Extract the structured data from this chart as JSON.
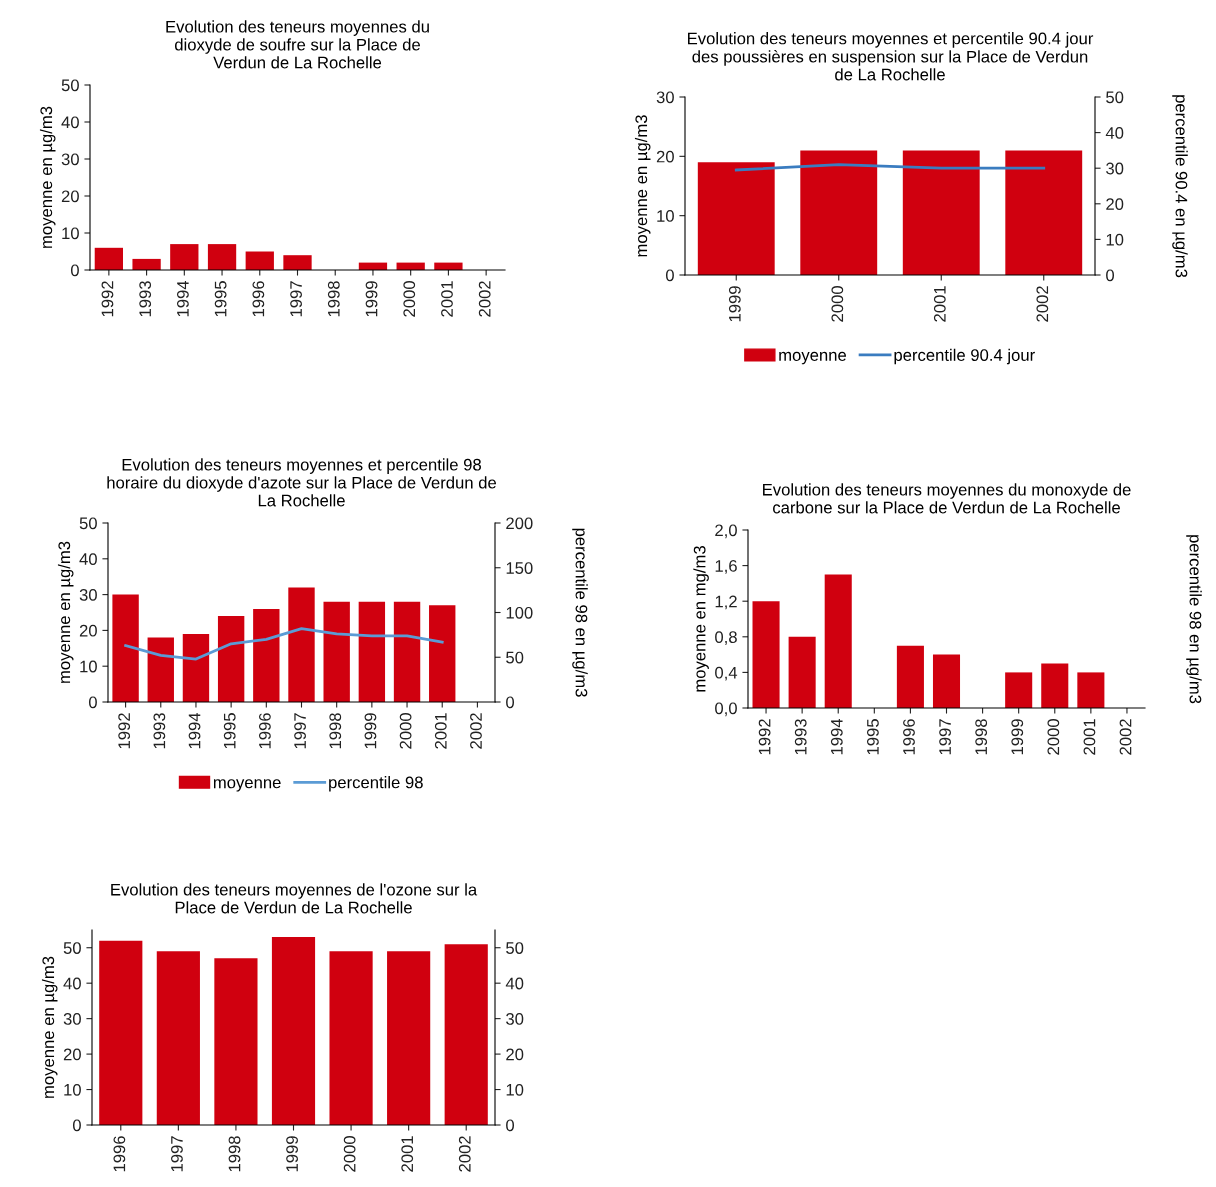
{
  "chart_data": [
    {
      "type": "bar",
      "title": "Evolution des teneurs moyennes du\ndioxyde de soufre sur la Place de\nVerdun de La Rochelle",
      "ylabel": "moyenne en µg/m3",
      "categories": [
        "1992",
        "1993",
        "1994",
        "1995",
        "1996",
        "1997",
        "1998",
        "1999",
        "2000",
        "2001",
        "2002"
      ],
      "series": [
        {
          "color": "#d0000f",
          "values": [
            6,
            3,
            7,
            7,
            5,
            4,
            null,
            2,
            2,
            2,
            null
          ]
        }
      ],
      "ylim": [
        0,
        50
      ],
      "yticks": [
        0,
        10,
        20,
        30,
        40,
        50
      ],
      "grid": false,
      "legend": false
    },
    {
      "type": "bar",
      "title": "Evolution des teneurs moyennes et percentile 90.4 jour\ndes poussières en suspension sur la Place de Verdun\nde La Rochelle",
      "ylabel": "moyenne en µg/m3",
      "y2label": "percentile 90.4 en µg/m3",
      "categories": [
        "1999",
        "2000",
        "2001",
        "2002"
      ],
      "series": [
        {
          "name": "moyenne",
          "color": "#d0000f",
          "values": [
            19,
            21,
            21,
            21
          ]
        },
        {
          "name": "percentile 90.4 jour",
          "type": "line",
          "axis": "y2",
          "color": "#3a7cc0",
          "values": [
            29.5,
            31,
            30,
            30
          ]
        }
      ],
      "ylim": [
        0,
        30
      ],
      "yticks": [
        0,
        10,
        20,
        30
      ],
      "y2lim": [
        0,
        50
      ],
      "y2ticks": [
        0,
        10,
        20,
        30,
        40,
        50
      ],
      "grid": false,
      "legend": "bottom",
      "marker": "none",
      "line_style": "solid"
    },
    {
      "type": "bar",
      "title": "Evolution des teneurs moyennes et percentile 98\nhoraire du dioxyde d'azote sur la Place de Verdun de\nLa Rochelle",
      "ylabel": "moyenne en µg/m3",
      "y2label": "percentile 98 en µg/m3",
      "categories": [
        "1992",
        "1993",
        "1994",
        "1995",
        "1996",
        "1997",
        "1998",
        "1999",
        "2000",
        "2001",
        "2002"
      ],
      "series": [
        {
          "name": "moyenne",
          "color": "#d0000f",
          "values": [
            30,
            18,
            19,
            24,
            26,
            32,
            28,
            28,
            28,
            27,
            null
          ]
        },
        {
          "name": "percentile 98",
          "type": "line",
          "axis": "y2",
          "color": "#5b9bd5",
          "values": [
            63,
            52,
            48,
            65,
            70,
            82,
            76,
            74,
            74,
            67,
            null
          ]
        }
      ],
      "ylim": [
        0,
        50
      ],
      "yticks": [
        0,
        10,
        20,
        30,
        40,
        50
      ],
      "y2lim": [
        0,
        200
      ],
      "y2ticks": [
        0,
        50,
        100,
        150,
        200
      ],
      "grid": false,
      "legend": "bottom",
      "marker": "none",
      "line_style": "solid"
    },
    {
      "type": "bar",
      "title": "Evolution des teneurs moyennes du monoxyde de\ncarbone sur la Place de Verdun de La Rochelle",
      "ylabel": "moyenne en mg/m3",
      "y2label": "percentile 98 en µg/m3",
      "categories": [
        "1992",
        "1993",
        "1994",
        "1995",
        "1996",
        "1997",
        "1998",
        "1999",
        "2000",
        "2001",
        "2002"
      ],
      "series": [
        {
          "color": "#d0000f",
          "values": [
            1.2,
            0.8,
            1.5,
            null,
            0.7,
            0.6,
            null,
            0.4,
            0.5,
            0.4,
            null
          ]
        }
      ],
      "ylim": [
        0,
        2
      ],
      "yticks": [
        {
          "value": 0,
          "label": "0,0"
        },
        {
          "value": 0.4,
          "label": "0,4"
        },
        {
          "value": 0.8,
          "label": "0,8"
        },
        {
          "value": 1.2,
          "label": "1,2"
        },
        {
          "value": 1.6,
          "label": "1,6"
        },
        {
          "value": 2,
          "label": "2,0"
        }
      ],
      "grid": false,
      "legend": false
    },
    {
      "type": "bar",
      "title": "Evolution des teneurs moyennes de l'ozone sur la\nPlace de Verdun de La Rochelle",
      "ylabel": "moyenne en µg/m3",
      "categories": [
        "1996",
        "1997",
        "1998",
        "1999",
        "2000",
        "2001",
        "2002"
      ],
      "series": [
        {
          "color": "#d0000f",
          "values": [
            52,
            49,
            47,
            53,
            49,
            49,
            51
          ]
        }
      ],
      "ylim": [
        0,
        55
      ],
      "yticks": [
        0,
        10,
        20,
        30,
        40,
        50
      ],
      "y2lim": [
        0,
        55
      ],
      "y2ticks": [
        0,
        10,
        20,
        30,
        40,
        50
      ],
      "grid": false,
      "legend": false
    }
  ]
}
